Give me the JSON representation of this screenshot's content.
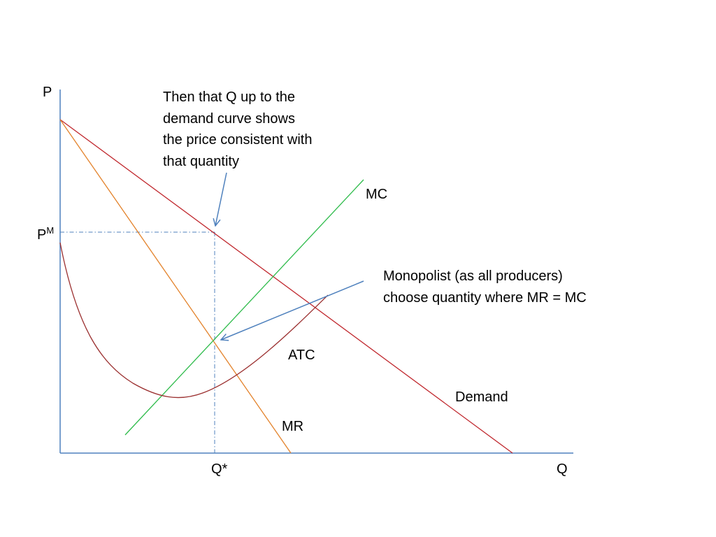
{
  "axes": {
    "y_label": "P",
    "x_label": "Q"
  },
  "markers": {
    "price_prefix": "P",
    "price_superscript": "M",
    "quantity_label": "Q*"
  },
  "curves": {
    "demand": {
      "label": "Demand",
      "color": "#c0282e"
    },
    "mr": {
      "label": "MR",
      "color": "#e3822a"
    },
    "mc": {
      "label": "MC",
      "color": "#2dbb4a"
    },
    "atc": {
      "label": "ATC",
      "color": "#9b3030"
    }
  },
  "annotations": {
    "demand_note": [
      "Then that Q up to the",
      "demand curve shows",
      "the price consistent with",
      "that quantity"
    ],
    "mr_mc_note": [
      "Monopolist (as all producers)",
      "choose quantity where MR = MC"
    ]
  },
  "colors": {
    "axis": "#4f81bd",
    "guide": "#4f81bd",
    "arrow": "#4f81bd"
  }
}
